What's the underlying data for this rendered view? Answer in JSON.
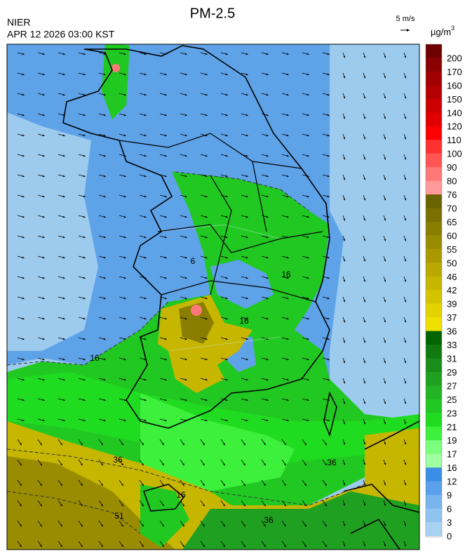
{
  "header": {
    "title": "PM-2.5",
    "agency": "NIER",
    "datetime": "APR 12 2026 03:00 KST",
    "wind_scale": "5 m/s"
  },
  "legend": {
    "unit": "µg/m",
    "unit_sup": "3",
    "ticks": [
      200,
      170,
      160,
      150,
      140,
      120,
      110,
      100,
      90,
      80,
      76,
      70,
      65,
      60,
      55,
      50,
      46,
      42,
      39,
      37,
      36,
      33,
      31,
      29,
      27,
      25,
      23,
      21,
      19,
      17,
      16,
      12,
      9,
      6,
      3,
      0
    ],
    "colors": [
      "#6e0000",
      "#8b0000",
      "#a00000",
      "#b40000",
      "#cc0000",
      "#e00000",
      "#ff0000",
      "#ff3030",
      "#ff5555",
      "#ff7878",
      "#ff9999",
      "#6b6300",
      "#7a7000",
      "#8a7e00",
      "#9a8c00",
      "#aa9a00",
      "#b8a800",
      "#c6b600",
      "#d4c400",
      "#e2d200",
      "#f0e000",
      "#006400",
      "#107a10",
      "#1a8c1a",
      "#20a020",
      "#22b422",
      "#22c822",
      "#20dc20",
      "#3cf03c",
      "#7cff7c",
      "#a0ffa0",
      "#3a8ee6",
      "#5aa0ea",
      "#78b4ee",
      "#90c4f0",
      "#a8d2f2"
    ]
  },
  "contour_labels": [
    16,
    16,
    16,
    36,
    36,
    51,
    36,
    6,
    16
  ]
}
